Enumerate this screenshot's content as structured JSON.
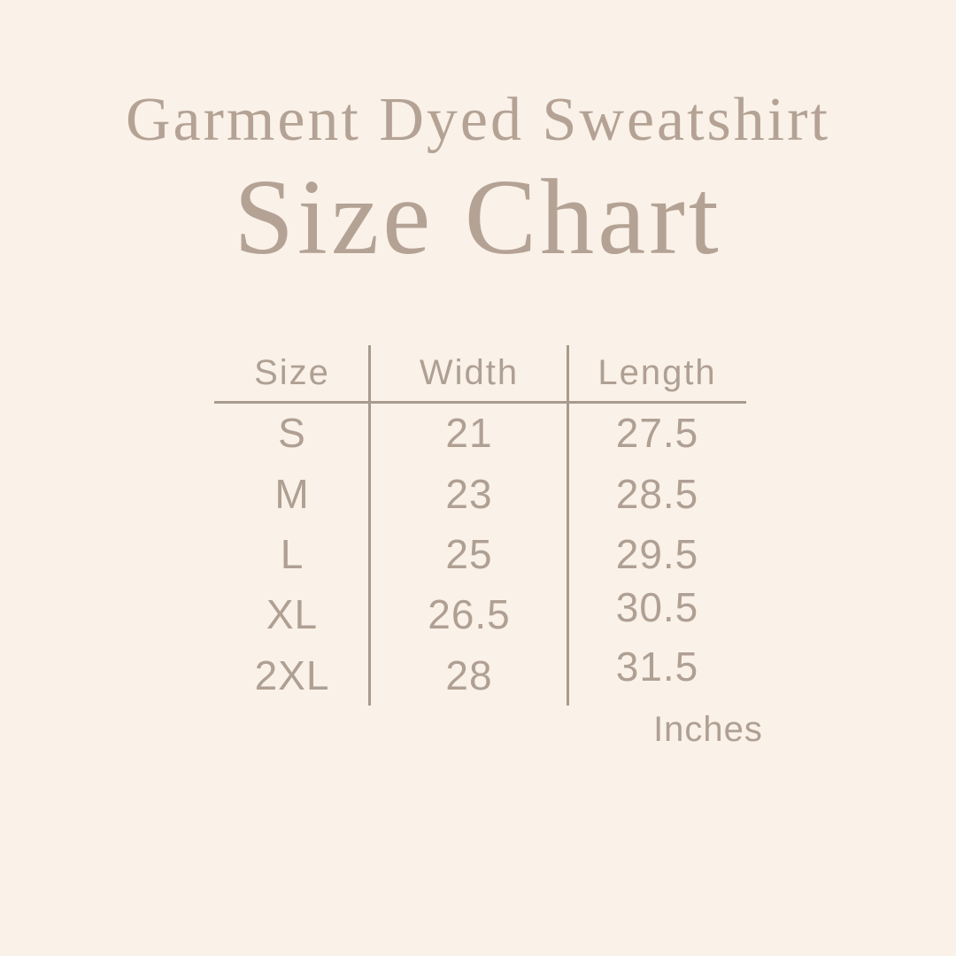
{
  "page": {
    "title_line1": "Garment Dyed Sweatshirt",
    "title_line2": "Size Chart",
    "units_label": "Inches"
  },
  "colors": {
    "background": "#FAF1E8",
    "title_text": "#B4A395",
    "table_text": "#AFA093",
    "divider_line": "#A89B8D"
  },
  "table": {
    "headers": [
      "Size",
      "Width",
      "Length"
    ],
    "rows": [
      {
        "size": "S",
        "width": "21",
        "length": "27.5"
      },
      {
        "size": "M",
        "width": "23",
        "length": "28.5"
      },
      {
        "size": "L",
        "width": "25",
        "length": "29.5"
      },
      {
        "size": "XL",
        "width": "26.5",
        "length": "30.5"
      },
      {
        "size": "2XL",
        "width": "28",
        "length": "31.5"
      }
    ]
  },
  "chart_data": {
    "type": "table",
    "title": "Garment Dyed Sweatshirt Size Chart",
    "columns": [
      "Size",
      "Width",
      "Length"
    ],
    "rows": [
      [
        "S",
        21,
        27.5
      ],
      [
        "M",
        23,
        28.5
      ],
      [
        "L",
        25,
        29.5
      ],
      [
        "XL",
        26.5,
        30.5
      ],
      [
        "2XL",
        28,
        31.5
      ]
    ],
    "units": "Inches",
    "layout": {
      "grid": "header-rule plus two column dividers",
      "legend_position": "none"
    }
  }
}
